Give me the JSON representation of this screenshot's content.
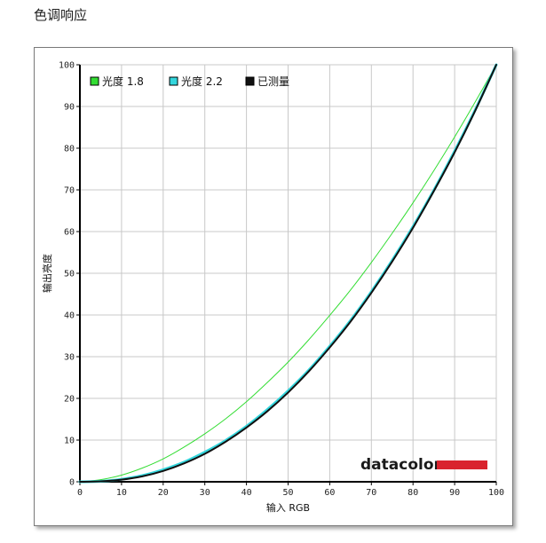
{
  "page": {
    "title": "色调响应"
  },
  "brand": {
    "name": "datacolor",
    "bar_color": "#d9232e"
  },
  "chart_data": {
    "type": "line",
    "title": "",
    "xlabel": "输入 RGB",
    "ylabel": "输出亮度",
    "xlim": [
      0,
      100
    ],
    "ylim": [
      0,
      100
    ],
    "x_ticks": [
      0,
      10,
      20,
      30,
      40,
      50,
      60,
      70,
      80,
      90,
      100
    ],
    "y_ticks": [
      0,
      10,
      20,
      30,
      40,
      50,
      60,
      70,
      80,
      90,
      100
    ],
    "grid": true,
    "legend_position": "top-left",
    "series": [
      {
        "name": "光度 1.8",
        "color": "#33dd33",
        "width": 1,
        "x": [
          0,
          5,
          10,
          15,
          20,
          25,
          30,
          35,
          40,
          45,
          50,
          55,
          60,
          65,
          70,
          75,
          80,
          85,
          90,
          95,
          100
        ],
        "y": [
          0,
          0.5,
          1.6,
          3.3,
          5.5,
          8.3,
          11.5,
          15.1,
          19.2,
          23.8,
          28.7,
          34.1,
          39.9,
          46.0,
          52.6,
          59.6,
          66.9,
          74.6,
          82.7,
          91.2,
          100
        ]
      },
      {
        "name": "光度 2.2",
        "color": "#33d6dd",
        "width": 3,
        "x": [
          0,
          5,
          10,
          15,
          20,
          25,
          30,
          35,
          40,
          45,
          50,
          55,
          60,
          65,
          70,
          75,
          80,
          85,
          90,
          95,
          100
        ],
        "y": [
          0,
          0.1,
          0.6,
          1.5,
          2.9,
          4.7,
          7.1,
          9.9,
          13.3,
          17.3,
          21.8,
          26.8,
          32.5,
          38.7,
          45.6,
          53.1,
          61.2,
          69.9,
          79.3,
          89.3,
          100
        ]
      },
      {
        "name": "已测量",
        "color": "#111111",
        "width": 2,
        "x": [
          0,
          5,
          10,
          15,
          20,
          25,
          30,
          35,
          40,
          45,
          50,
          55,
          60,
          65,
          70,
          75,
          80,
          85,
          90,
          95,
          100
        ],
        "y": [
          0,
          0.1,
          0.5,
          1.3,
          2.6,
          4.4,
          6.7,
          9.6,
          13.0,
          16.9,
          21.4,
          26.5,
          32.2,
          38.4,
          45.3,
          52.8,
          60.9,
          69.7,
          79.0,
          89.1,
          100
        ]
      }
    ]
  }
}
